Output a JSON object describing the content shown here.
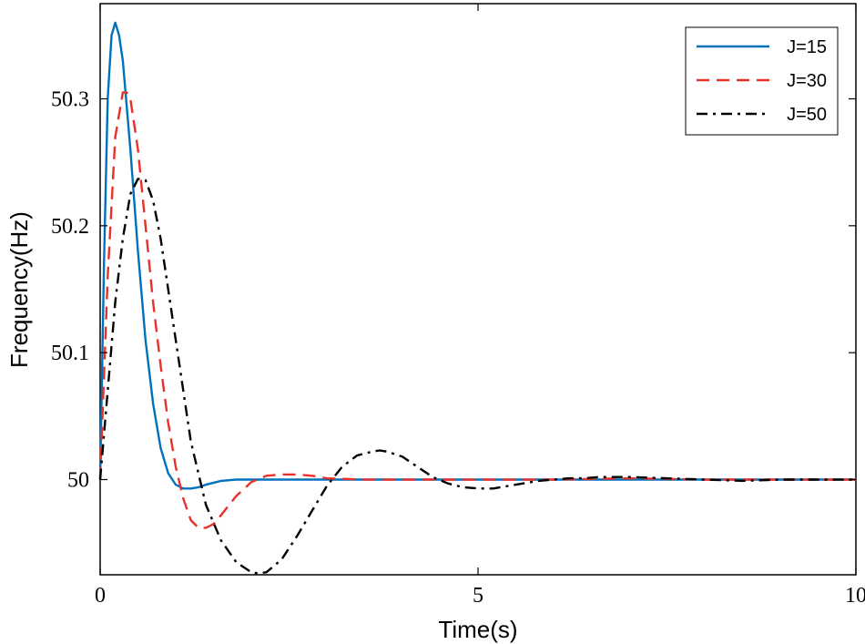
{
  "chart_data": {
    "type": "line",
    "title": "",
    "xlabel": "Time(s)",
    "ylabel": "Frequency(Hz)",
    "xlim": [
      0,
      10
    ],
    "ylim": [
      49.925,
      50.375
    ],
    "xticks": [
      0,
      5,
      10
    ],
    "xtick_labels": [
      "0",
      "5",
      "10"
    ],
    "yticks": [
      50,
      50.1,
      50.2,
      50.3
    ],
    "ytick_labels": [
      "50",
      "50.1",
      "50.2",
      "50.3"
    ],
    "grid": false,
    "legend_position": "top-right",
    "series": [
      {
        "name": "J=15",
        "color": "#0072BD",
        "style": "solid",
        "x": [
          0,
          0.05,
          0.1,
          0.15,
          0.2,
          0.25,
          0.3,
          0.4,
          0.5,
          0.6,
          0.7,
          0.8,
          0.9,
          1.0,
          1.1,
          1.2,
          1.3,
          1.4,
          1.6,
          1.8,
          2.0,
          2.5,
          3.0,
          4.0,
          5.0,
          6.0,
          7.0,
          8.0,
          9.0,
          10.0
        ],
        "y": [
          50.0,
          50.17,
          50.3,
          50.35,
          50.36,
          50.35,
          50.33,
          50.26,
          50.18,
          50.11,
          50.06,
          50.025,
          50.005,
          49.996,
          49.993,
          49.993,
          49.994,
          49.996,
          49.999,
          50.0,
          50.0,
          50.0,
          50.0,
          50.0,
          50.0,
          50.0,
          50.0,
          50.0,
          50.0,
          50.0
        ]
      },
      {
        "name": "J=30",
        "color": "#E8312A",
        "style": "dashed",
        "x": [
          0,
          0.1,
          0.2,
          0.3,
          0.35,
          0.4,
          0.5,
          0.6,
          0.7,
          0.8,
          0.9,
          1.0,
          1.1,
          1.2,
          1.3,
          1.4,
          1.5,
          1.6,
          1.8,
          2.0,
          2.2,
          2.4,
          2.6,
          2.8,
          3.0,
          3.5,
          4.0,
          5.0,
          6.0,
          7.0,
          8.0,
          9.0,
          10.0
        ],
        "y": [
          50.0,
          50.16,
          50.27,
          50.305,
          50.305,
          50.3,
          50.26,
          50.2,
          50.14,
          50.09,
          50.045,
          50.01,
          49.985,
          49.968,
          49.962,
          49.962,
          49.965,
          49.972,
          49.987,
          49.998,
          50.003,
          50.004,
          50.004,
          50.003,
          50.001,
          50.0,
          50.0,
          50.0,
          50.0,
          50.001,
          50.0,
          50.0,
          50.0
        ]
      },
      {
        "name": "J=50",
        "color": "#000000",
        "style": "dashdot",
        "x": [
          0,
          0.1,
          0.2,
          0.3,
          0.4,
          0.5,
          0.6,
          0.7,
          0.8,
          0.9,
          1.0,
          1.2,
          1.4,
          1.6,
          1.8,
          2.0,
          2.1,
          2.2,
          2.4,
          2.6,
          2.8,
          3.0,
          3.2,
          3.4,
          3.6,
          3.7,
          3.8,
          4.0,
          4.2,
          4.4,
          4.6,
          4.8,
          5.0,
          5.2,
          5.4,
          5.6,
          5.8,
          6.0,
          6.2,
          6.4,
          6.6,
          6.8,
          7.0,
          7.5,
          8.0,
          8.5,
          9.0,
          9.5,
          10.0
        ],
        "y": [
          50.0,
          50.07,
          50.14,
          50.19,
          50.225,
          50.237,
          50.236,
          50.22,
          50.19,
          50.15,
          50.11,
          50.03,
          49.98,
          49.952,
          49.935,
          49.927,
          49.926,
          49.927,
          49.937,
          49.955,
          49.975,
          49.995,
          50.01,
          50.019,
          50.022,
          50.023,
          50.022,
          50.018,
          50.01,
          50.002,
          49.997,
          49.994,
          49.993,
          49.993,
          49.995,
          49.997,
          49.999,
          50.0,
          50.001,
          50.001,
          50.002,
          50.002,
          50.002,
          50.001,
          50.0,
          49.999,
          50.0,
          50.0,
          50.0
        ]
      }
    ]
  }
}
